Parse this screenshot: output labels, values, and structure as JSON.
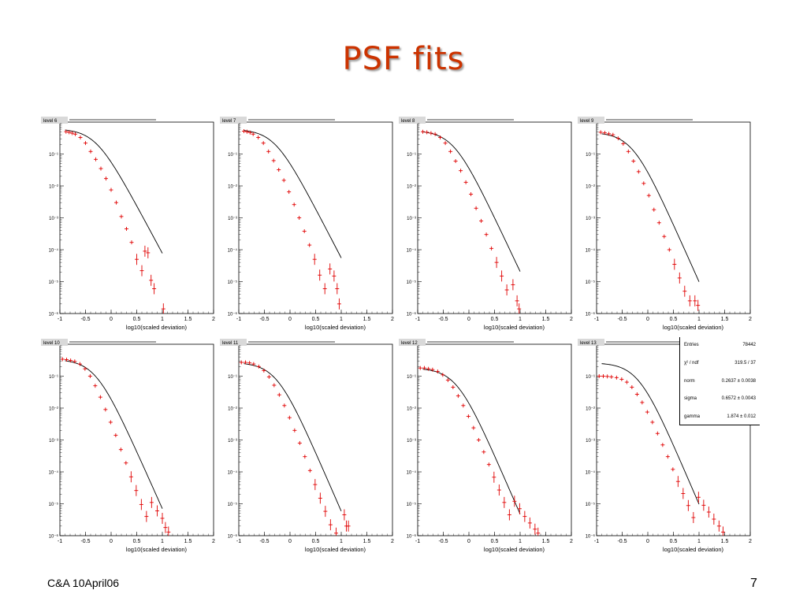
{
  "slide": {
    "title": "PSF fits",
    "footer_left": "C&A 10April06",
    "page_number": "7"
  },
  "colors": {
    "title": "#cc3300",
    "data_points": "#e00000",
    "fit_curve": "#000000"
  },
  "chart_data": [
    {
      "type": "scatter",
      "title": "level 6",
      "xlabel": "log10(scaled deviation)",
      "ylabel": "",
      "xlim": [
        -1,
        2
      ],
      "ylim": [
        1e-06,
        1
      ],
      "log_y": true,
      "x_ticks": [
        "-1",
        "-0.5",
        "0",
        "0.5",
        "1",
        "1.5",
        "2"
      ],
      "y_ticks": [
        "10⁻⁶",
        "10⁻⁵",
        "10⁻⁴",
        "10⁻³",
        "10⁻²",
        "10⁻¹"
      ],
      "fit": {
        "norm": 0.62,
        "sigma": 0.5,
        "gamma": 1.5,
        "x_max": 1.0
      },
      "points": [
        [
          -0.88,
          0.5
        ],
        [
          -0.82,
          0.48
        ],
        [
          -0.76,
          0.45
        ],
        [
          -0.7,
          0.42
        ],
        [
          -0.6,
          0.33
        ],
        [
          -0.5,
          0.22
        ],
        [
          -0.4,
          0.12
        ],
        [
          -0.3,
          0.068
        ],
        [
          -0.2,
          0.035
        ],
        [
          -0.1,
          0.017
        ],
        [
          0,
          0.0075
        ],
        [
          0.1,
          0.003
        ],
        [
          0.2,
          0.0011
        ],
        [
          0.3,
          0.00045
        ],
        [
          0.4,
          0.00017
        ],
        [
          0.5,
          5e-05
        ],
        [
          0.6,
          2.2e-05
        ],
        [
          0.66,
          9e-05
        ],
        [
          0.72,
          8e-05
        ],
        [
          0.78,
          1.1e-05
        ],
        [
          0.84,
          6e-06
        ],
        [
          1.02,
          1.4e-06
        ]
      ]
    },
    {
      "type": "scatter",
      "title": "level 7",
      "xlabel": "log10(scaled deviation)",
      "ylabel": "",
      "xlim": [
        -1,
        2
      ],
      "ylim": [
        1e-06,
        1
      ],
      "log_y": true,
      "x_ticks": [
        "-1",
        "-0.5",
        "0",
        "0.5",
        "1",
        "1.5",
        "2"
      ],
      "y_ticks": [
        "10⁻⁶",
        "10⁻⁵",
        "10⁻⁴",
        "10⁻³",
        "10⁻²",
        "10⁻¹"
      ],
      "fit": {
        "norm": 0.6,
        "sigma": 0.5,
        "gamma": 1.55,
        "x_max": 1.0
      },
      "points": [
        [
          -0.9,
          0.52
        ],
        [
          -0.84,
          0.5
        ],
        [
          -0.78,
          0.47
        ],
        [
          -0.72,
          0.42
        ],
        [
          -0.62,
          0.33
        ],
        [
          -0.52,
          0.22
        ],
        [
          -0.42,
          0.12
        ],
        [
          -0.32,
          0.062
        ],
        [
          -0.22,
          0.032
        ],
        [
          -0.12,
          0.015
        ],
        [
          -0.02,
          0.0065
        ],
        [
          0.08,
          0.0026
        ],
        [
          0.18,
          0.001
        ],
        [
          0.28,
          0.00038
        ],
        [
          0.38,
          0.00014
        ],
        [
          0.48,
          5e-05
        ],
        [
          0.58,
          1.6e-05
        ],
        [
          0.68,
          6e-06
        ],
        [
          0.78,
          2.5e-05
        ],
        [
          0.86,
          1.5e-05
        ],
        [
          0.92,
          6e-06
        ],
        [
          0.96,
          2e-06
        ]
      ]
    },
    {
      "type": "scatter",
      "title": "level 8",
      "xlabel": "log10(scaled deviation)",
      "ylabel": "",
      "xlim": [
        -1,
        2
      ],
      "ylim": [
        1e-06,
        1
      ],
      "log_y": true,
      "x_ticks": [
        "-1",
        "-0.5",
        "0",
        "0.5",
        "1",
        "1.5",
        "2"
      ],
      "y_ticks": [
        "10⁻⁶",
        "10⁻⁵",
        "10⁻⁴",
        "10⁻³",
        "10⁻²",
        "10⁻¹"
      ],
      "fit": {
        "norm": 0.55,
        "sigma": 0.5,
        "gamma": 1.7,
        "x_max": 1.0
      },
      "points": [
        [
          -0.9,
          0.5
        ],
        [
          -0.82,
          0.48
        ],
        [
          -0.74,
          0.45
        ],
        [
          -0.66,
          0.42
        ],
        [
          -0.56,
          0.33
        ],
        [
          -0.46,
          0.22
        ],
        [
          -0.36,
          0.12
        ],
        [
          -0.26,
          0.06
        ],
        [
          -0.16,
          0.03
        ],
        [
          -0.06,
          0.013
        ],
        [
          0.04,
          0.0055
        ],
        [
          0.14,
          0.002
        ],
        [
          0.24,
          0.0008
        ],
        [
          0.34,
          0.0003
        ],
        [
          0.44,
          0.00011
        ],
        [
          0.54,
          4e-05
        ],
        [
          0.64,
          1.5e-05
        ],
        [
          0.74,
          5.5e-06
        ],
        [
          0.86,
          8e-06
        ],
        [
          0.94,
          2.5e-06
        ],
        [
          0.98,
          1.4e-06
        ]
      ]
    },
    {
      "type": "scatter",
      "title": "level 9",
      "xlabel": "log10(scaled deviation)",
      "ylabel": "",
      "xlim": [
        -1,
        2
      ],
      "ylim": [
        1e-06,
        1
      ],
      "log_y": true,
      "x_ticks": [
        "-1",
        "-0.5",
        "0",
        "0.5",
        "1",
        "1.5",
        "2"
      ],
      "y_ticks": [
        "10⁻⁶",
        "10⁻⁵",
        "10⁻⁴",
        "10⁻³",
        "10⁻²",
        "10⁻¹"
      ],
      "fit": {
        "norm": 0.48,
        "sigma": 0.5,
        "gamma": 1.8,
        "x_max": 1.0
      },
      "points": [
        [
          -0.92,
          0.48
        ],
        [
          -0.84,
          0.46
        ],
        [
          -0.76,
          0.43
        ],
        [
          -0.68,
          0.4
        ],
        [
          -0.58,
          0.31
        ],
        [
          -0.48,
          0.21
        ],
        [
          -0.38,
          0.12
        ],
        [
          -0.28,
          0.06
        ],
        [
          -0.18,
          0.028
        ],
        [
          -0.08,
          0.012
        ],
        [
          0.02,
          0.005
        ],
        [
          0.12,
          0.0018
        ],
        [
          0.22,
          0.0007
        ],
        [
          0.32,
          0.00026
        ],
        [
          0.42,
          0.0001
        ],
        [
          0.52,
          3.5e-05
        ],
        [
          0.62,
          1.3e-05
        ],
        [
          0.72,
          5e-06
        ],
        [
          0.82,
          2.5e-06
        ],
        [
          0.92,
          2.5e-06
        ],
        [
          0.98,
          1.8e-06
        ]
      ]
    },
    {
      "type": "scatter",
      "title": "level 10",
      "xlabel": "log10(scaled deviation)",
      "ylabel": "",
      "xlim": [
        -1,
        2
      ],
      "ylim": [
        1e-06,
        1
      ],
      "log_y": true,
      "x_ticks": [
        "-1",
        "-0.5",
        "0",
        "0.5",
        "1",
        "1.5",
        "2"
      ],
      "y_ticks": [
        "10⁻⁶",
        "10⁻⁵",
        "10⁻⁴",
        "10⁻³",
        "10⁻²",
        "10⁻¹"
      ],
      "fit": {
        "norm": 0.34,
        "sigma": 0.5,
        "gamma": 1.8,
        "x_max": 1.0
      },
      "points": [
        [
          -0.95,
          0.34
        ],
        [
          -0.87,
          0.33
        ],
        [
          -0.79,
          0.31
        ],
        [
          -0.71,
          0.29
        ],
        [
          -0.61,
          0.24
        ],
        [
          -0.51,
          0.17
        ],
        [
          -0.41,
          0.1
        ],
        [
          -0.31,
          0.05
        ],
        [
          -0.21,
          0.022
        ],
        [
          -0.11,
          0.009
        ],
        [
          -0.01,
          0.0036
        ],
        [
          0.09,
          0.0014
        ],
        [
          0.19,
          0.0005
        ],
        [
          0.29,
          0.00019
        ],
        [
          0.39,
          7e-05
        ],
        [
          0.49,
          2.6e-05
        ],
        [
          0.59,
          9.5e-06
        ],
        [
          0.69,
          4e-06
        ],
        [
          0.79,
          1.1e-05
        ],
        [
          0.9,
          6e-06
        ],
        [
          1.0,
          3.5e-06
        ],
        [
          1.06,
          1.8e-06
        ],
        [
          1.12,
          1.3e-06
        ]
      ]
    },
    {
      "type": "scatter",
      "title": "level 11",
      "xlabel": "log10(scaled deviation)",
      "ylabel": "",
      "xlim": [
        -1,
        2
      ],
      "ylim": [
        1e-06,
        1
      ],
      "log_y": true,
      "x_ticks": [
        "-1",
        "-0.5",
        "0",
        "0.5",
        "1",
        "1.5",
        "2"
      ],
      "y_ticks": [
        "10⁻⁶",
        "10⁻⁵",
        "10⁻⁴",
        "10⁻³",
        "10⁻²",
        "10⁻¹"
      ],
      "fit": {
        "norm": 0.27,
        "sigma": 0.55,
        "gamma": 1.85,
        "x_max": 1.0
      },
      "points": [
        [
          -0.95,
          0.27
        ],
        [
          -0.87,
          0.27
        ],
        [
          -0.79,
          0.26
        ],
        [
          -0.71,
          0.24
        ],
        [
          -0.61,
          0.2
        ],
        [
          -0.51,
          0.15
        ],
        [
          -0.41,
          0.095
        ],
        [
          -0.31,
          0.052
        ],
        [
          -0.21,
          0.026
        ],
        [
          -0.11,
          0.012
        ],
        [
          -0.01,
          0.005
        ],
        [
          0.09,
          0.002
        ],
        [
          0.19,
          0.0008
        ],
        [
          0.29,
          0.0003
        ],
        [
          0.39,
          0.00011
        ],
        [
          0.49,
          4e-05
        ],
        [
          0.59,
          1.5e-05
        ],
        [
          0.69,
          5.8e-06
        ],
        [
          0.79,
          2.2e-06
        ],
        [
          0.9,
          1.2e-06
        ],
        [
          1.06,
          4.5e-06
        ],
        [
          1.1,
          2e-06
        ],
        [
          1.14,
          2e-06
        ]
      ]
    },
    {
      "type": "scatter",
      "title": "level 12",
      "xlabel": "log10(scaled deviation)",
      "ylabel": "",
      "xlim": [
        -1,
        2
      ],
      "ylim": [
        1e-06,
        1
      ],
      "log_y": true,
      "x_ticks": [
        "-1",
        "-0.5",
        "0",
        "0.5",
        "1",
        "1.5",
        "2"
      ],
      "y_ticks": [
        "10⁻⁶",
        "10⁻⁵",
        "10⁻⁴",
        "10⁻³",
        "10⁻²",
        "10⁻¹"
      ],
      "fit": {
        "norm": 0.18,
        "sigma": 0.58,
        "gamma": 1.85,
        "x_max": 1.0
      },
      "points": [
        [
          -0.95,
          0.18
        ],
        [
          -0.87,
          0.18
        ],
        [
          -0.79,
          0.17
        ],
        [
          -0.71,
          0.16
        ],
        [
          -0.61,
          0.14
        ],
        [
          -0.51,
          0.11
        ],
        [
          -0.41,
          0.075
        ],
        [
          -0.31,
          0.045
        ],
        [
          -0.21,
          0.024
        ],
        [
          -0.11,
          0.012
        ],
        [
          -0.01,
          0.0055
        ],
        [
          0.09,
          0.0024
        ],
        [
          0.19,
          0.001
        ],
        [
          0.29,
          0.00042
        ],
        [
          0.39,
          0.00017
        ],
        [
          0.49,
          6.8e-05
        ],
        [
          0.59,
          2.7e-05
        ],
        [
          0.69,
          1.1e-05
        ],
        [
          0.79,
          4.5e-06
        ],
        [
          0.89,
          1.2e-05
        ],
        [
          0.99,
          7e-06
        ],
        [
          1.09,
          4e-06
        ],
        [
          1.19,
          2.5e-06
        ],
        [
          1.29,
          1.6e-06
        ],
        [
          1.35,
          1.2e-06
        ]
      ]
    },
    {
      "type": "scatter",
      "title": "level 13",
      "xlabel": "log10(scaled deviation)",
      "ylabel": "",
      "xlim": [
        -1,
        2
      ],
      "ylim": [
        1e-06,
        1
      ],
      "log_y": true,
      "x_ticks": [
        "-1",
        "-0.5",
        "0",
        "0.5",
        "1",
        "1.5",
        "2"
      ],
      "y_ticks": [
        "10⁻⁶",
        "10⁻⁵",
        "10⁻⁴",
        "10⁻³",
        "10⁻²",
        "10⁻¹"
      ],
      "fit": {
        "norm": 0.2637,
        "sigma": 0.6572,
        "gamma": 1.874,
        "x_max": 1.0
      },
      "points": [
        [
          -0.95,
          0.1
        ],
        [
          -0.87,
          0.1
        ],
        [
          -0.79,
          0.098
        ],
        [
          -0.71,
          0.095
        ],
        [
          -0.61,
          0.09
        ],
        [
          -0.51,
          0.08
        ],
        [
          -0.41,
          0.065
        ],
        [
          -0.31,
          0.045
        ],
        [
          -0.21,
          0.027
        ],
        [
          -0.11,
          0.015
        ],
        [
          -0.01,
          0.0075
        ],
        [
          0.09,
          0.0036
        ],
        [
          0.19,
          0.0016
        ],
        [
          0.29,
          0.0007
        ],
        [
          0.39,
          0.0003
        ],
        [
          0.49,
          0.00012
        ],
        [
          0.59,
          5e-05
        ],
        [
          0.69,
          2.1e-05
        ],
        [
          0.79,
          8.8e-06
        ],
        [
          0.89,
          3.7e-06
        ],
        [
          0.99,
          1.6e-05
        ],
        [
          1.09,
          9e-06
        ],
        [
          1.19,
          5.5e-06
        ],
        [
          1.29,
          3.3e-06
        ],
        [
          1.39,
          2e-06
        ],
        [
          1.47,
          1.3e-06
        ]
      ],
      "stats": [
        {
          "label": "Entries",
          "value": "78442"
        },
        {
          "label": "χ² / ndf",
          "value": "319.5 / 37"
        },
        {
          "label": "norm",
          "value": "0.2637 ± 0.0038"
        },
        {
          "label": "sigma",
          "value": "0.6572 ± 0.0043"
        },
        {
          "label": "gamma",
          "value": "1.874 ± 0.012"
        }
      ]
    }
  ]
}
